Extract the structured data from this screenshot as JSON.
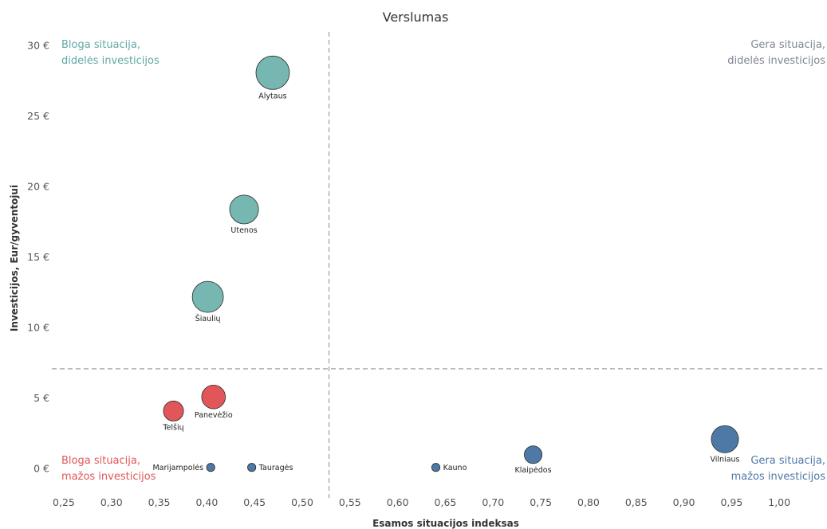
{
  "chart_data": {
    "type": "scatter",
    "title": "Verslumas",
    "xlabel": "Esamos situacijos indeksas",
    "ylabel": "Investicijos, Eur/gyventojui",
    "xlim": [
      0.24,
      1.05
    ],
    "ylim": [
      -1.5,
      31
    ],
    "x_ticks": [
      "0,25",
      "0,30",
      "0,35",
      "0,40",
      "0,45",
      "0,50",
      "0,55",
      "0,60",
      "0,65",
      "0,70",
      "0,75",
      "0,80",
      "0,85",
      "0,90",
      "0,95",
      "1,00"
    ],
    "x_tick_values": [
      0.25,
      0.3,
      0.35,
      0.4,
      0.45,
      0.5,
      0.55,
      0.6,
      0.65,
      0.7,
      0.75,
      0.8,
      0.85,
      0.9,
      0.95,
      1.0
    ],
    "y_ticks": [
      "0 €",
      "5 €",
      "10 €",
      "15 €",
      "20 €",
      "25 €",
      "30 €"
    ],
    "y_tick_values": [
      0,
      5,
      10,
      15,
      20,
      25,
      30
    ],
    "reference_lines": {
      "x": 0.528,
      "y": 7.1
    },
    "grid": false,
    "points": [
      {
        "name": "Alytaus",
        "x": 0.469,
        "y": 28.1,
        "size": 1.0,
        "color": "#76b7b2",
        "label_pos": "below"
      },
      {
        "name": "Utenos",
        "x": 0.439,
        "y": 18.4,
        "size": 0.74,
        "color": "#76b7b2",
        "label_pos": "below"
      },
      {
        "name": "Šiaulių",
        "x": 0.401,
        "y": 12.2,
        "size": 0.86,
        "color": "#76b7b2",
        "label_pos": "below"
      },
      {
        "name": "Panevėžio",
        "x": 0.407,
        "y": 5.1,
        "size": 0.5,
        "color": "#e15759",
        "label_pos": "below"
      },
      {
        "name": "Telšių",
        "x": 0.365,
        "y": 4.1,
        "size": 0.36,
        "color": "#e15759",
        "label_pos": "below"
      },
      {
        "name": "Marijampolės",
        "x": 0.404,
        "y": 0.1,
        "size": 0.06,
        "color": "#4e79a7",
        "label_pos": "left"
      },
      {
        "name": "Tauragės",
        "x": 0.447,
        "y": 0.1,
        "size": 0.06,
        "color": "#4e79a7",
        "label_pos": "right"
      },
      {
        "name": "Kauno",
        "x": 0.64,
        "y": 0.1,
        "size": 0.06,
        "color": "#4e79a7",
        "label_pos": "right"
      },
      {
        "name": "Klaipėdos",
        "x": 0.742,
        "y": 1.0,
        "size": 0.28,
        "color": "#4e79a7",
        "label_pos": "below"
      },
      {
        "name": "Vilniaus",
        "x": 0.943,
        "y": 2.1,
        "size": 0.66,
        "color": "#4e79a7",
        "label_pos": "below"
      }
    ],
    "quadrant_labels": [
      {
        "lines": [
          "Bloga situacija,",
          "didelės investicijos"
        ],
        "position": "top-left",
        "color": "#5fa8a5"
      },
      {
        "lines": [
          "Gera situacija,",
          "didelės investicijos"
        ],
        "position": "top-right",
        "color": "#7f8790"
      },
      {
        "lines": [
          "Bloga situacija,",
          "mažos investicijos"
        ],
        "position": "bottom-left",
        "color": "#e15759"
      },
      {
        "lines": [
          "Gera situacija,",
          "mažos investicijos"
        ],
        "position": "bottom-right",
        "color": "#4e79a7"
      }
    ]
  }
}
